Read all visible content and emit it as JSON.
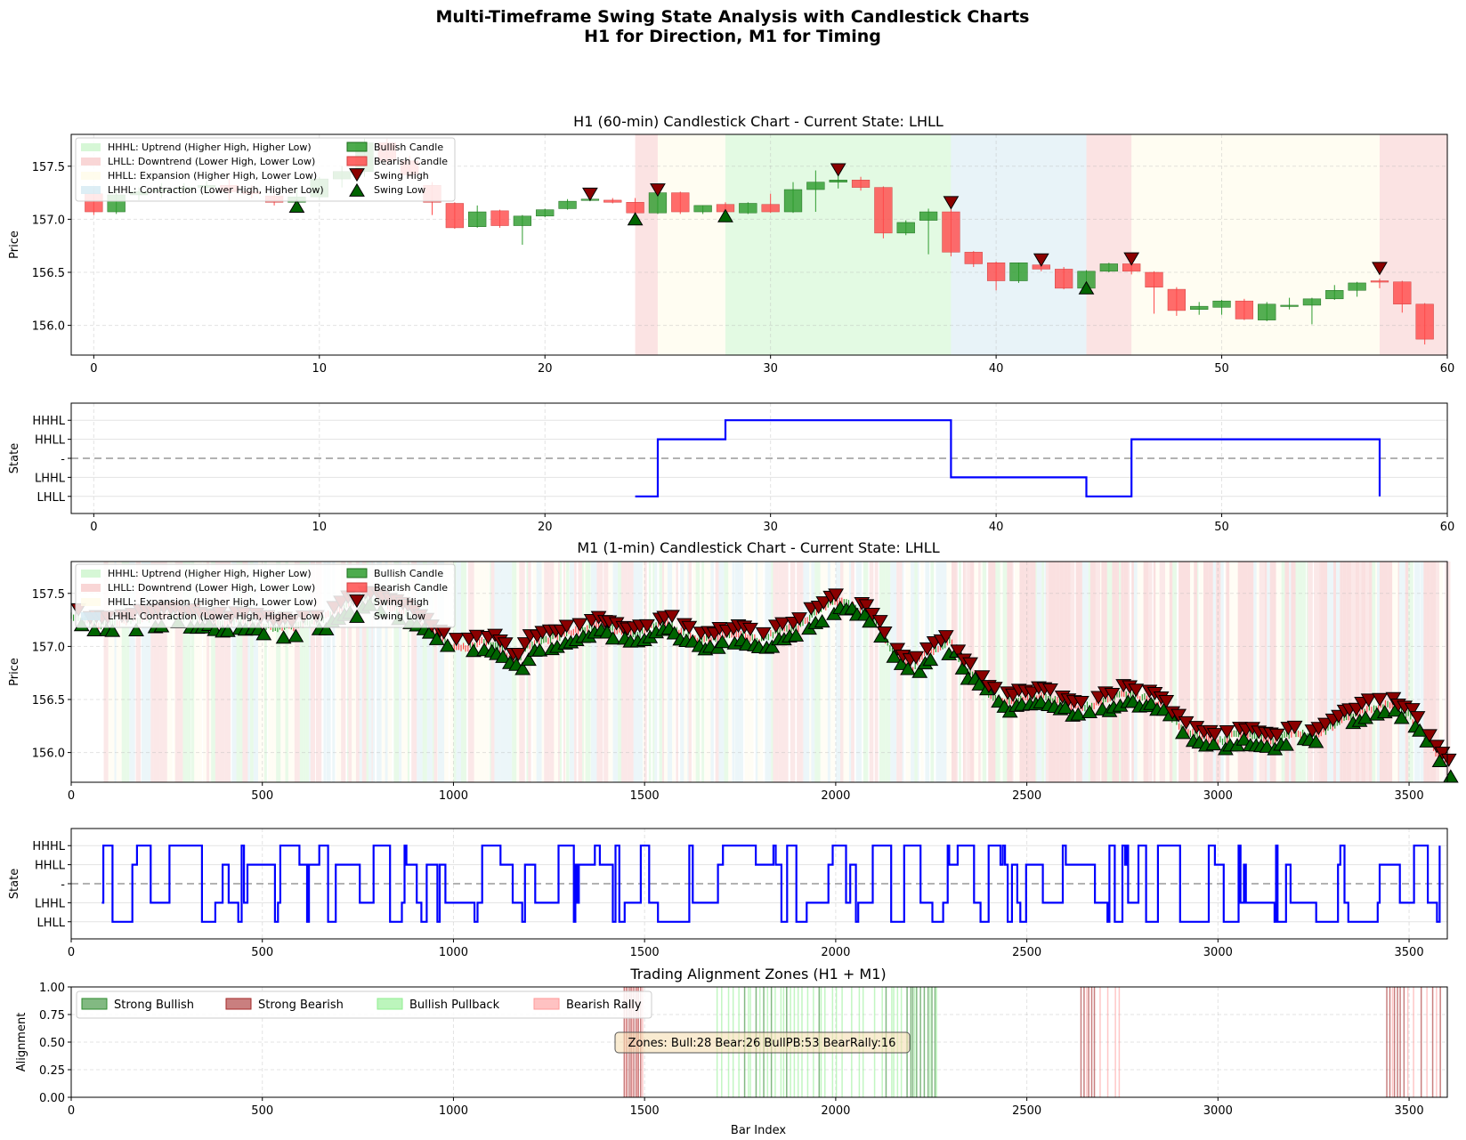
{
  "figure": {
    "title_line1": "Multi-Timeframe Swing State Analysis with Candlestick Charts",
    "title_line2": "H1 for Direction, M1 for Timing"
  },
  "colors": {
    "bullish": "#2e9c2e",
    "bearish": "#ff4c4c",
    "state_line": "#0000ff",
    "HHHL": "#ccf5cc",
    "LHLL": "#f7cccc",
    "HHLL": "#fffbe8",
    "LHHL": "#d5eaf2",
    "swing_high": "#8b0000",
    "swing_low": "#006400",
    "strong_bull": "#2e8b2e",
    "strong_bear": "#a52a2a",
    "bull_pb": "#90ee90",
    "bear_rally": "#ff9999"
  },
  "legend_regimes": [
    "HHHL: Uptrend (Higher High, Higher Low)",
    "LHLL: Downtrend (Lower High, Lower Low)",
    "HHLL: Expansion (Higher High, Lower Low)",
    "LHHL: Contraction (Lower High, Higher Low)"
  ],
  "legend_markers": [
    "Bullish Candle",
    "Bearish Candle",
    "Swing High",
    "Swing Low"
  ],
  "state_ticks": [
    "HHHL",
    "HHLL",
    "-",
    "LHHL",
    "LHLL"
  ],
  "chart_data": [
    {
      "id": "h1",
      "type": "candlestick",
      "title": "H1 (60-min) Candlestick Chart - Current State: LHLL",
      "ylabel": "Price",
      "xlim": [
        -1,
        60
      ],
      "ylim": [
        155.72,
        157.8
      ],
      "xticks": [
        0,
        10,
        20,
        30,
        40,
        50,
        60
      ],
      "yticks": [
        "156.0",
        "156.5",
        "157.0",
        "157.5"
      ],
      "ytick_values": [
        156.0,
        156.5,
        157.0,
        157.5
      ],
      "candles": [
        [
          157.24,
          157.3,
          157.04,
          157.07
        ],
        [
          157.07,
          157.28,
          157.05,
          157.23
        ],
        [
          157.23,
          157.3,
          157.18,
          157.26
        ],
        [
          157.26,
          157.34,
          157.2,
          157.28
        ],
        [
          157.28,
          157.34,
          157.22,
          157.3
        ],
        [
          157.3,
          157.36,
          157.24,
          157.32
        ],
        [
          157.32,
          157.38,
          157.18,
          157.26
        ],
        [
          157.26,
          157.32,
          157.2,
          157.24
        ],
        [
          157.22,
          157.26,
          157.13,
          157.16
        ],
        [
          157.16,
          157.3,
          157.13,
          157.21
        ],
        [
          157.21,
          157.4,
          157.18,
          157.38
        ],
        [
          157.38,
          157.5,
          157.3,
          157.45
        ],
        [
          157.45,
          157.76,
          157.4,
          157.72
        ],
        [
          157.72,
          157.76,
          157.5,
          157.55
        ],
        [
          157.55,
          157.6,
          157.38,
          157.42
        ],
        [
          157.32,
          157.35,
          157.04,
          157.16
        ],
        [
          157.15,
          157.16,
          156.91,
          156.92
        ],
        [
          156.93,
          157.13,
          156.92,
          157.07
        ],
        [
          157.08,
          157.09,
          156.92,
          156.94
        ],
        [
          156.94,
          157.04,
          156.76,
          157.03
        ],
        [
          157.03,
          157.1,
          157.02,
          157.09
        ],
        [
          157.1,
          157.19,
          157.09,
          157.17
        ],
        [
          157.18,
          157.22,
          157.17,
          157.19
        ],
        [
          157.18,
          157.2,
          157.15,
          157.16
        ],
        [
          157.16,
          157.2,
          157.05,
          157.06
        ],
        [
          157.06,
          157.27,
          157.05,
          157.25
        ],
        [
          157.25,
          157.26,
          157.05,
          157.07
        ],
        [
          157.07,
          157.13,
          157.05,
          157.13
        ],
        [
          157.14,
          157.16,
          157.06,
          157.07
        ],
        [
          157.06,
          157.16,
          157.05,
          157.15
        ],
        [
          157.14,
          157.24,
          157.06,
          157.07
        ],
        [
          157.07,
          157.35,
          157.06,
          157.28
        ],
        [
          157.28,
          157.46,
          157.07,
          157.35
        ],
        [
          157.35,
          157.44,
          157.29,
          157.37
        ],
        [
          157.37,
          157.4,
          157.27,
          157.3
        ],
        [
          157.3,
          157.31,
          156.82,
          156.87
        ],
        [
          156.87,
          156.99,
          156.85,
          156.97
        ],
        [
          156.99,
          157.1,
          156.67,
          157.07
        ],
        [
          157.07,
          157.16,
          156.65,
          156.69
        ],
        [
          156.69,
          156.7,
          156.55,
          156.58
        ],
        [
          156.59,
          156.6,
          156.33,
          156.42
        ],
        [
          156.42,
          156.59,
          156.4,
          156.59
        ],
        [
          156.57,
          156.6,
          156.51,
          156.53
        ],
        [
          156.53,
          156.55,
          156.34,
          156.35
        ],
        [
          156.35,
          156.52,
          156.33,
          156.51
        ],
        [
          156.51,
          156.59,
          156.5,
          156.58
        ],
        [
          156.58,
          156.6,
          156.48,
          156.51
        ],
        [
          156.5,
          156.51,
          156.11,
          156.36
        ],
        [
          156.34,
          156.36,
          156.09,
          156.14
        ],
        [
          156.15,
          156.22,
          156.1,
          156.18
        ],
        [
          156.17,
          156.24,
          156.1,
          156.23
        ],
        [
          156.23,
          156.25,
          156.05,
          156.06
        ],
        [
          156.05,
          156.22,
          156.04,
          156.2
        ],
        [
          156.18,
          156.26,
          156.15,
          156.19
        ],
        [
          156.19,
          156.26,
          156.01,
          156.25
        ],
        [
          156.25,
          156.38,
          156.24,
          156.33
        ],
        [
          156.33,
          156.41,
          156.27,
          156.4
        ],
        [
          156.42,
          156.44,
          156.35,
          156.41
        ],
        [
          156.41,
          156.42,
          156.12,
          156.2
        ],
        [
          156.2,
          156.21,
          155.82,
          155.87
        ]
      ],
      "swing_highs": [
        [
          22,
          157.24
        ],
        [
          25,
          157.28
        ],
        [
          33,
          157.47
        ],
        [
          38,
          157.16
        ],
        [
          42,
          156.62
        ],
        [
          46,
          156.63
        ],
        [
          57,
          156.54
        ]
      ],
      "swing_lows": [
        [
          9,
          157.12
        ],
        [
          24,
          157.0
        ],
        [
          28,
          157.03
        ],
        [
          44,
          156.35
        ]
      ],
      "regimes": [
        [
          24,
          25,
          "LHLL"
        ],
        [
          25,
          28,
          "HHLL"
        ],
        [
          28,
          38,
          "HHHL"
        ],
        [
          38,
          44,
          "LHHL"
        ],
        [
          44,
          46,
          "LHLL"
        ],
        [
          46,
          57,
          "HHLL"
        ],
        [
          57,
          60,
          "LHLL"
        ]
      ]
    },
    {
      "id": "h1_state",
      "type": "line",
      "ylabel": "State",
      "xlim": [
        -1,
        60
      ],
      "xticks": [
        0,
        10,
        20,
        30,
        40,
        50,
        60
      ],
      "steps": [
        [
          24,
          -2
        ],
        [
          25,
          -2
        ],
        [
          25,
          1
        ],
        [
          28,
          1
        ],
        [
          28,
          2
        ],
        [
          38,
          2
        ],
        [
          38,
          -1
        ],
        [
          44,
          -1
        ],
        [
          44,
          -2
        ],
        [
          46,
          -2
        ],
        [
          46,
          1
        ],
        [
          57,
          1
        ],
        [
          57,
          -2
        ]
      ]
    },
    {
      "id": "m1",
      "type": "candlestick",
      "title": "M1 (1-min) Candlestick Chart - Current State: LHLL",
      "ylabel": "Price",
      "xlim": [
        0,
        3600
      ],
      "ylim": [
        155.72,
        157.8
      ],
      "xticks": [
        0,
        500,
        1000,
        1500,
        2000,
        2500,
        3000,
        3500
      ],
      "yticks": [
        "156.0",
        "156.5",
        "157.0",
        "157.5"
      ],
      "ytick_values": [
        156.0,
        156.5,
        157.0,
        157.5
      ],
      "path": [
        [
          0,
          157.3
        ],
        [
          30,
          157.25
        ],
        [
          60,
          157.2
        ],
        [
          100,
          157.22
        ],
        [
          150,
          157.25
        ],
        [
          200,
          157.27
        ],
        [
          250,
          157.3
        ],
        [
          300,
          157.28
        ],
        [
          350,
          157.25
        ],
        [
          400,
          157.22
        ],
        [
          450,
          157.25
        ],
        [
          500,
          157.2
        ],
        [
          550,
          157.18
        ],
        [
          600,
          157.2
        ],
        [
          650,
          157.25
        ],
        [
          700,
          157.35
        ],
        [
          760,
          157.45
        ],
        [
          820,
          157.4
        ],
        [
          880,
          157.3
        ],
        [
          920,
          157.2
        ],
        [
          960,
          157.1
        ],
        [
          1000,
          156.98
        ],
        [
          1040,
          157.0
        ],
        [
          1080,
          157.05
        ],
        [
          1120,
          157.0
        ],
        [
          1160,
          156.85
        ],
        [
          1200,
          157.02
        ],
        [
          1260,
          157.08
        ],
        [
          1320,
          157.15
        ],
        [
          1380,
          157.2
        ],
        [
          1430,
          157.15
        ],
        [
          1480,
          157.1
        ],
        [
          1520,
          157.2
        ],
        [
          1560,
          157.22
        ],
        [
          1600,
          157.12
        ],
        [
          1650,
          157.05
        ],
        [
          1700,
          157.1
        ],
        [
          1750,
          157.12
        ],
        [
          1800,
          157.05
        ],
        [
          1850,
          157.15
        ],
        [
          1900,
          157.18
        ],
        [
          1940,
          157.3
        ],
        [
          1980,
          157.4
        ],
        [
          2020,
          157.42
        ],
        [
          2060,
          157.35
        ],
        [
          2100,
          157.25
        ],
        [
          2140,
          157.0
        ],
        [
          2170,
          156.88
        ],
        [
          2200,
          156.78
        ],
        [
          2230,
          156.92
        ],
        [
          2270,
          156.98
        ],
        [
          2300,
          157.05
        ],
        [
          2330,
          156.8
        ],
        [
          2370,
          156.72
        ],
        [
          2400,
          156.55
        ],
        [
          2450,
          156.48
        ],
        [
          2500,
          156.52
        ],
        [
          2550,
          156.53
        ],
        [
          2600,
          156.45
        ],
        [
          2650,
          156.42
        ],
        [
          2700,
          156.48
        ],
        [
          2750,
          156.55
        ],
        [
          2800,
          156.52
        ],
        [
          2850,
          156.45
        ],
        [
          2900,
          156.25
        ],
        [
          2950,
          156.15
        ],
        [
          3000,
          156.1
        ],
        [
          3050,
          156.18
        ],
        [
          3100,
          156.15
        ],
        [
          3150,
          156.12
        ],
        [
          3200,
          156.2
        ],
        [
          3250,
          156.15
        ],
        [
          3300,
          156.25
        ],
        [
          3350,
          156.35
        ],
        [
          3400,
          156.42
        ],
        [
          3450,
          156.45
        ],
        [
          3500,
          156.35
        ],
        [
          3550,
          156.1
        ],
        [
          3600,
          155.85
        ]
      ]
    },
    {
      "id": "m1_state",
      "type": "line",
      "ylabel": "State",
      "xlim": [
        0,
        3600
      ],
      "xticks": [
        0,
        500,
        1000,
        1500,
        2000,
        2500,
        3000,
        3500
      ],
      "start": 80,
      "end": 3580
    },
    {
      "id": "alignment",
      "type": "area",
      "title": "Trading Alignment Zones (H1 + M1)",
      "ylabel": "Alignment",
      "xlabel": "Bar Index",
      "xlim": [
        0,
        3600
      ],
      "ylim": [
        0,
        1
      ],
      "xticks": [
        0,
        500,
        1000,
        1500,
        2000,
        2500,
        3000,
        3500
      ],
      "yticks": [
        "0.00",
        "0.25",
        "0.50",
        "0.75",
        "1.00"
      ],
      "ytick_values": [
        0,
        0.25,
        0.5,
        0.75,
        1.0
      ],
      "annotation": "Zones: Bull:28 Bear:26 BullPB:53 BearRally:16",
      "legend": [
        "Strong Bullish",
        "Strong Bearish",
        "Bullish Pullback",
        "Bearish Rally"
      ],
      "strong_bearish": [
        1445,
        1452,
        1458,
        1463,
        1470,
        1476,
        1482,
        1488,
        2640,
        2648,
        2660,
        2668,
        2675,
        3440,
        3448,
        3460,
        3468,
        3475,
        3485,
        3530,
        3560,
        3580
      ],
      "bearish_rally": [
        1449,
        1466,
        1479,
        1493,
        2655,
        2690,
        2710,
        2730,
        2740,
        3455,
        3495,
        3510,
        3545,
        3570
      ],
      "strong_bullish": [
        1760,
        1790,
        1810,
        1830,
        1870,
        1955,
        2130,
        2185,
        2195,
        2200,
        2210,
        2220,
        2230,
        2240,
        2250,
        2258
      ],
      "bullish_pullback": [
        1688,
        1700,
        1718,
        1730,
        1745,
        1770,
        1775,
        1800,
        1820,
        1840,
        1855,
        1862,
        1880,
        1890,
        1900,
        1910,
        1925,
        1940,
        1960,
        1970,
        1990,
        2000,
        2015,
        2040,
        2060,
        2070,
        2100,
        2120,
        2145,
        2150,
        2160,
        2170,
        2205,
        2245,
        2262
      ]
    }
  ]
}
